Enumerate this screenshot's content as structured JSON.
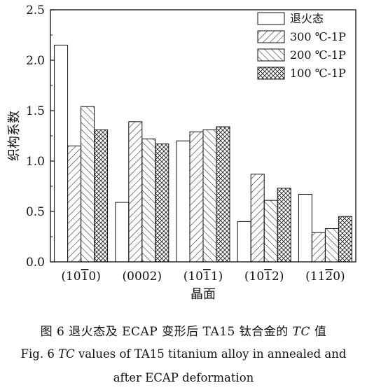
{
  "chart_data": {
    "type": "bar",
    "categories": [
      "(1010̄)",
      "(0002)",
      "(1011̄)",
      "(1012̄)",
      "(1120̄)"
    ],
    "category_labels": [
      {
        "pre": "(10",
        "bar": "1",
        "post": "0)"
      },
      {
        "pre": "(0002)",
        "bar": "",
        "post": ""
      },
      {
        "pre": "(10",
        "bar": "1",
        "post": "1)"
      },
      {
        "pre": "(10",
        "bar": "1",
        "post": "2)"
      },
      {
        "pre": "(11",
        "bar": "2",
        "post": "0)"
      }
    ],
    "series": [
      {
        "name": "退火态",
        "pattern": "none",
        "values": [
          2.15,
          0.59,
          1.2,
          0.4,
          0.67
        ]
      },
      {
        "name": "300 ℃-1P",
        "pattern": "forward-hatch",
        "values": [
          1.15,
          1.39,
          1.29,
          0.87,
          0.29
        ]
      },
      {
        "name": "200 ℃-1P",
        "pattern": "back-hatch",
        "values": [
          1.54,
          1.22,
          1.31,
          0.61,
          0.33
        ]
      },
      {
        "name": "100 ℃-1P",
        "pattern": "cross-hatch",
        "values": [
          1.31,
          1.17,
          1.34,
          0.73,
          0.45
        ]
      }
    ],
    "xlabel": "晶面",
    "ylabel": "织构系数",
    "ylim": [
      0,
      2.5
    ],
    "yticks": [
      "0.0",
      "0.5",
      "1.0",
      "1.5",
      "2.0",
      "2.5"
    ],
    "legend_position": "top-right",
    "grid": false
  },
  "caption": {
    "zh_prefix": "图 6    退火态及 ECAP 变形后 TA15 钛合金的 ",
    "zh_tc": "TC",
    "zh_suffix": " 值",
    "en_prefix": "Fig. 6    ",
    "en_tc": "TC",
    "en_line1_rest": " values of TA15 titanium alloy in annealed and",
    "en_line2": "after ECAP deformation"
  }
}
